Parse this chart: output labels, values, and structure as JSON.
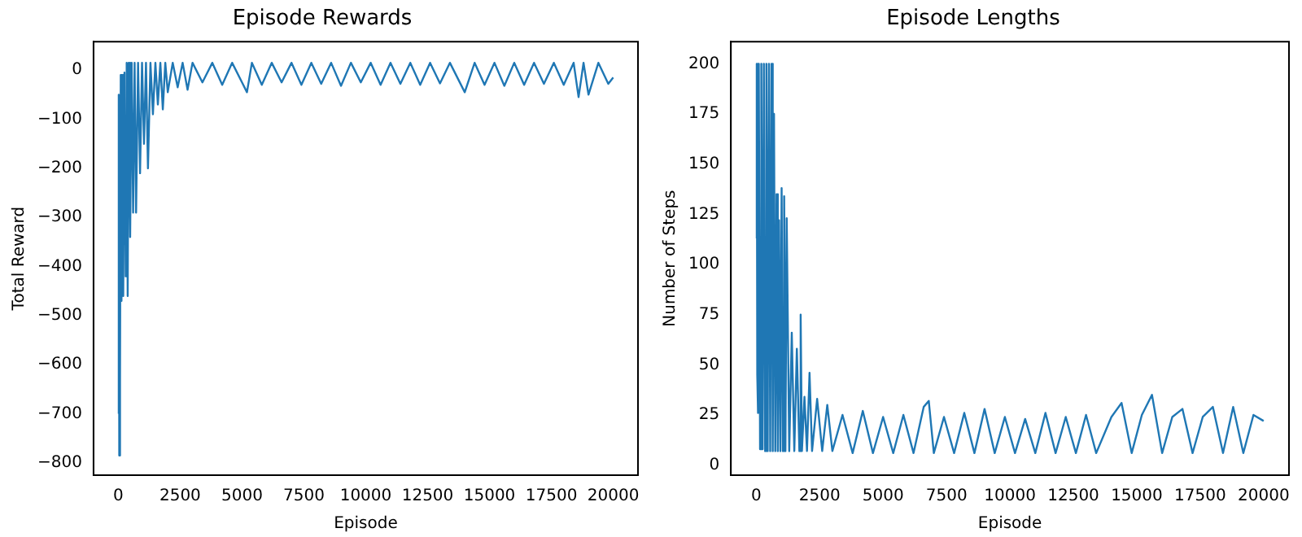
{
  "chart_data": [
    {
      "type": "line",
      "title": "Episode Rewards",
      "xlabel": "Episode",
      "ylabel": "Total Reward",
      "grid": false,
      "legend": false,
      "xlim": [
        -1000,
        21000
      ],
      "ylim": [
        -825,
        58
      ],
      "xticks": [
        0,
        2500,
        5000,
        7500,
        10000,
        12500,
        15000,
        17500,
        20000
      ],
      "yticks": [
        -800,
        -700,
        -600,
        -500,
        -400,
        -300,
        -200,
        -100,
        0
      ],
      "series": [
        {
          "color": "#1f77b4",
          "x": [
            0,
            20,
            40,
            60,
            80,
            100,
            130,
            160,
            200,
            250,
            300,
            340,
            380,
            420,
            480,
            540,
            600,
            660,
            720,
            800,
            880,
            960,
            1040,
            1120,
            1200,
            1300,
            1400,
            1500,
            1600,
            1700,
            1800,
            1900,
            2000,
            2200,
            2400,
            2600,
            2800,
            3000,
            3400,
            3800,
            4200,
            4600,
            5000,
            5200,
            5400,
            5800,
            6200,
            6600,
            7000,
            7400,
            7800,
            8200,
            8600,
            9000,
            9400,
            9800,
            10200,
            10600,
            11000,
            11400,
            11800,
            12200,
            12600,
            13000,
            13400,
            14000,
            14400,
            14800,
            15200,
            15600,
            16000,
            16400,
            16800,
            17200,
            17600,
            18000,
            18400,
            18600,
            18800,
            19000,
            19400,
            19800,
            20000
          ],
          "values": [
            -700,
            -50,
            -785,
            -250,
            -640,
            -10,
            -470,
            -10,
            -460,
            -5,
            -420,
            15,
            -460,
            15,
            -340,
            15,
            -290,
            15,
            -290,
            15,
            -210,
            15,
            -150,
            15,
            -200,
            15,
            -90,
            15,
            -70,
            15,
            -80,
            15,
            -45,
            15,
            -35,
            15,
            -40,
            15,
            -25,
            15,
            -30,
            15,
            -25,
            -45,
            15,
            -30,
            15,
            -25,
            15,
            -30,
            15,
            -28,
            15,
            -32,
            15,
            -25,
            15,
            -30,
            15,
            -28,
            15,
            -30,
            15,
            -27,
            15,
            -45,
            15,
            -30,
            15,
            -32,
            15,
            -30,
            15,
            -28,
            15,
            -30,
            15,
            -55,
            15,
            -50,
            15,
            -28,
            -15
          ]
        }
      ]
    },
    {
      "type": "line",
      "title": "Episode Lengths",
      "xlabel": "Episode",
      "ylabel": "Number of Steps",
      "grid": false,
      "legend": false,
      "xlim": [
        -1000,
        21000
      ],
      "ylim": [
        -5,
        211
      ],
      "xticks": [
        0,
        2500,
        5000,
        7500,
        10000,
        12500,
        15000,
        17500,
        20000
      ],
      "yticks": [
        0,
        25,
        50,
        75,
        100,
        125,
        150,
        175,
        200
      ],
      "series": [
        {
          "color": "#1f77b4",
          "x": [
            0,
            20,
            40,
            60,
            80,
            100,
            150,
            200,
            250,
            300,
            350,
            400,
            450,
            500,
            550,
            600,
            650,
            700,
            750,
            800,
            850,
            900,
            950,
            1000,
            1050,
            1100,
            1150,
            1200,
            1300,
            1400,
            1500,
            1600,
            1700,
            1750,
            1800,
            1900,
            2000,
            2100,
            2200,
            2400,
            2600,
            2800,
            3000,
            3400,
            3800,
            4200,
            4600,
            5000,
            5400,
            5800,
            6200,
            6600,
            6800,
            7000,
            7400,
            7800,
            8200,
            8600,
            9000,
            9400,
            9800,
            10200,
            10600,
            11000,
            11400,
            11800,
            12200,
            12600,
            13000,
            13400,
            14000,
            14400,
            14800,
            15200,
            15600,
            16000,
            16400,
            16800,
            17200,
            17600,
            18000,
            18400,
            18800,
            19200,
            19600,
            20000
          ],
          "values": [
            113,
            200,
            45,
            200,
            26,
            200,
            8,
            200,
            8,
            200,
            7,
            200,
            7,
            200,
            7,
            200,
            7,
            175,
            7,
            135,
            7,
            122,
            7,
            138,
            7,
            134,
            7,
            123,
            7,
            66,
            7,
            58,
            7,
            75,
            7,
            34,
            7,
            46,
            7,
            33,
            7,
            30,
            7,
            25,
            6,
            27,
            6,
            24,
            6,
            25,
            6,
            29,
            32,
            6,
            24,
            6,
            26,
            6,
            28,
            6,
            24,
            6,
            23,
            6,
            26,
            6,
            24,
            6,
            25,
            6,
            24,
            31,
            6,
            25,
            35,
            6,
            24,
            28,
            6,
            24,
            29,
            6,
            29,
            6,
            25,
            22
          ]
        }
      ]
    }
  ]
}
